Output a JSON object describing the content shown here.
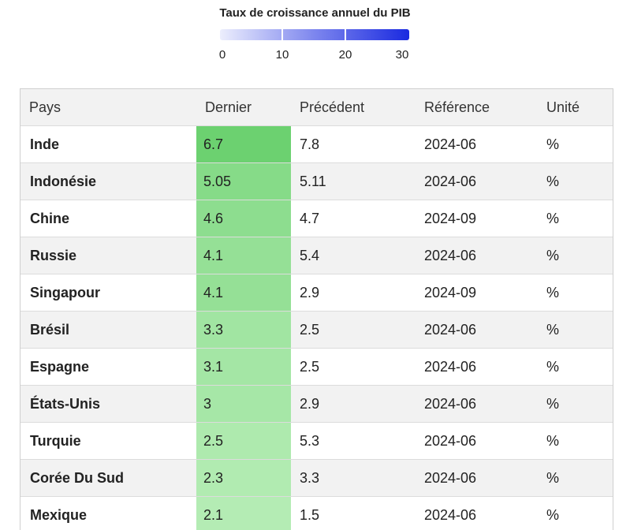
{
  "chart_data": {
    "type": "table",
    "title": "Taux de croissance annuel du PIB",
    "legend_ticks": [
      "0",
      "10",
      "20",
      "30"
    ],
    "legend_range": [
      0,
      30
    ],
    "legend_colors": {
      "low": "#eceefd",
      "high": "#1a2ae0"
    },
    "heat_colors": {
      "high": "#6cd170",
      "low": "#b4ecb4"
    },
    "columns": [
      "Pays",
      "Dernier",
      "Précédent",
      "Référence",
      "Unité"
    ],
    "rows": [
      {
        "country": "Inde",
        "last": "6.7",
        "previous": "7.8",
        "reference": "2024-06",
        "unit": "%"
      },
      {
        "country": "Indonésie",
        "last": "5.05",
        "previous": "5.11",
        "reference": "2024-06",
        "unit": "%"
      },
      {
        "country": "Chine",
        "last": "4.6",
        "previous": "4.7",
        "reference": "2024-09",
        "unit": "%"
      },
      {
        "country": "Russie",
        "last": "4.1",
        "previous": "5.4",
        "reference": "2024-06",
        "unit": "%"
      },
      {
        "country": "Singapour",
        "last": "4.1",
        "previous": "2.9",
        "reference": "2024-09",
        "unit": "%"
      },
      {
        "country": "Brésil",
        "last": "3.3",
        "previous": "2.5",
        "reference": "2024-06",
        "unit": "%"
      },
      {
        "country": "Espagne",
        "last": "3.1",
        "previous": "2.5",
        "reference": "2024-06",
        "unit": "%"
      },
      {
        "country": "États-Unis",
        "last": "3",
        "previous": "2.9",
        "reference": "2024-06",
        "unit": "%"
      },
      {
        "country": "Turquie",
        "last": "2.5",
        "previous": "5.3",
        "reference": "2024-06",
        "unit": "%"
      },
      {
        "country": "Corée Du Sud",
        "last": "2.3",
        "previous": "3.3",
        "reference": "2024-06",
        "unit": "%"
      },
      {
        "country": "Mexique",
        "last": "2.1",
        "previous": "1.5",
        "reference": "2024-06",
        "unit": "%"
      }
    ]
  }
}
